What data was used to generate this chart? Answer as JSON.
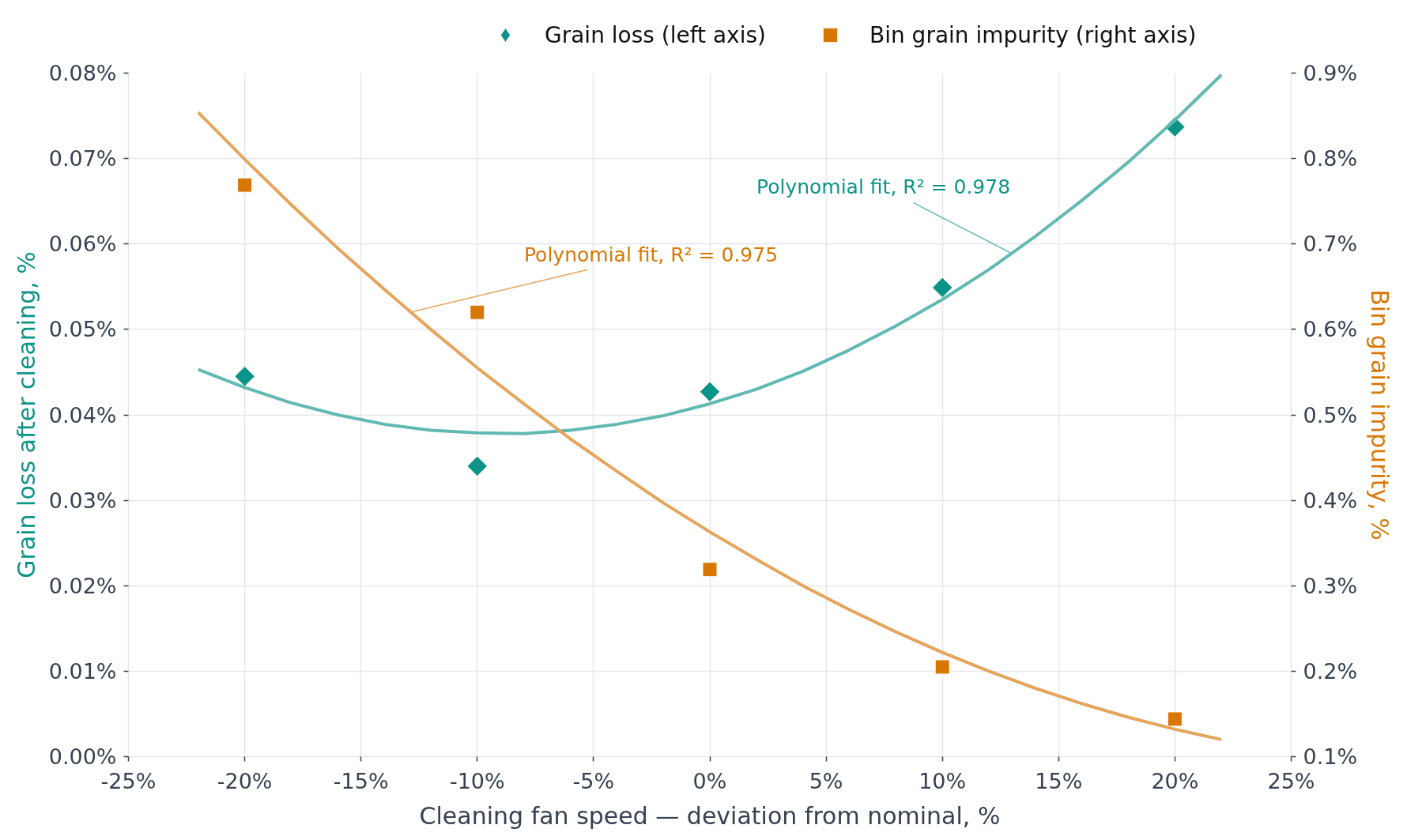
{
  "chart_data": {
    "type": "scatter",
    "xlabel": "Cleaning fan speed — deviation from nominal, %",
    "ylabel": "Grain loss after cleaning, %",
    "y2label": "Bin grain impurity, %",
    "x": [
      -20,
      -10,
      0,
      10,
      20
    ],
    "series": [
      {
        "name": "Grain loss (left axis)",
        "marker": "diamond",
        "color": "#0d9488",
        "values": [
          0.0445,
          0.034,
          0.0427,
          0.0549,
          0.0737
        ]
      },
      {
        "type": "line",
        "color": "#62b9b2",
        "x": [
          -22,
          -20,
          -18,
          -16,
          -14,
          -12,
          -10,
          -8,
          -6,
          -4,
          -2,
          0,
          2,
          4,
          6,
          8,
          10,
          12,
          14,
          16,
          18,
          20,
          22
        ],
        "values": [
          0.0453,
          0.0432,
          0.0414,
          0.04,
          0.0389,
          0.0382,
          0.0379,
          0.0378,
          0.0382,
          0.0389,
          0.0399,
          0.0413,
          0.043,
          0.0451,
          0.0476,
          0.0504,
          0.0535,
          0.057,
          0.0609,
          0.0651,
          0.0696,
          0.0745,
          0.0798
        ]
      },
      {
        "name": "Bin grain impurity (right axis)",
        "marker": "square",
        "axis": "y2",
        "color": "#d97706",
        "values": [
          0.769,
          0.62,
          0.319,
          0.205,
          0.144
        ]
      },
      {
        "type": "line",
        "axis": "y2",
        "color": "#e5a55d",
        "x": [
          -22,
          -20,
          -18,
          -16,
          -14,
          -12,
          -10,
          -8,
          -6,
          -4,
          -2,
          0,
          2,
          4,
          6,
          8,
          10,
          12,
          14,
          16,
          18,
          20,
          22
        ],
        "values": [
          0.854,
          0.799,
          0.746,
          0.695,
          0.647,
          0.6,
          0.555,
          0.513,
          0.472,
          0.434,
          0.397,
          0.363,
          0.331,
          0.3,
          0.272,
          0.246,
          0.222,
          0.2,
          0.18,
          0.162,
          0.146,
          0.132,
          0.12
        ]
      }
    ],
    "xlim": [
      -25,
      25
    ],
    "xticks": [
      {
        "value": -25,
        "label": "-25%"
      },
      {
        "value": -20,
        "label": "-20%"
      },
      {
        "value": -15,
        "label": "-15%"
      },
      {
        "value": -10,
        "label": "-10%"
      },
      {
        "value": -5,
        "label": "-5%"
      },
      {
        "value": 0,
        "label": "0%"
      },
      {
        "value": 5,
        "label": "5%"
      },
      {
        "value": 10,
        "label": "10%"
      },
      {
        "value": 15,
        "label": "15%"
      },
      {
        "value": 20,
        "label": "20%"
      },
      {
        "value": 25,
        "label": "25%"
      }
    ],
    "ylim": [
      0,
      0.08
    ],
    "yticks": [
      {
        "value": 0,
        "label": "0.00%"
      },
      {
        "value": 0.01,
        "label": "0.01%"
      },
      {
        "value": 0.02,
        "label": "0.02%"
      },
      {
        "value": 0.03,
        "label": "0.03%"
      },
      {
        "value": 0.04,
        "label": "0.04%"
      },
      {
        "value": 0.05,
        "label": "0.05%"
      },
      {
        "value": 0.06,
        "label": "0.06%"
      },
      {
        "value": 0.07,
        "label": "0.07%"
      },
      {
        "value": 0.08,
        "label": "0.08%"
      }
    ],
    "y2lim": [
      0.1,
      0.9
    ],
    "y2ticks": [
      {
        "value": 0.1,
        "label": "0.1%"
      },
      {
        "value": 0.2,
        "label": "0.2%"
      },
      {
        "value": 0.3,
        "label": "0.3%"
      },
      {
        "value": 0.4,
        "label": "0.4%"
      },
      {
        "value": 0.5,
        "label": "0.5%"
      },
      {
        "value": 0.6,
        "label": "0.6%"
      },
      {
        "value": 0.7,
        "label": "0.7%"
      },
      {
        "value": 0.8,
        "label": "0.8%"
      },
      {
        "value": 0.9,
        "label": "0.9%"
      }
    ],
    "grid": true,
    "legend": "top",
    "annotations": [
      {
        "text": "Polynomial fit, R² = 0.978",
        "x": 12.9,
        "y": 0.059
      },
      {
        "text": "Polynomial fit, R² = 0.975",
        "x": -12.9,
        "y": 0.052
      }
    ]
  }
}
